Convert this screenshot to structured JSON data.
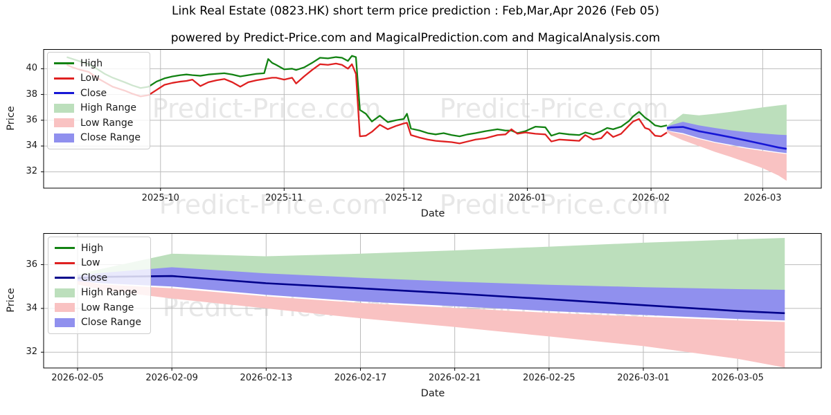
{
  "title": "Link Real Estate (0823.HK) short term price prediction : Feb,Mar,Apr 2026 (Feb 05)",
  "subtitle": "powered by Predict-Price.com and MagicalPrediction.com and MagicalAnalysis.com",
  "watermark": {
    "text": "Predict-Price.com"
  },
  "colors": {
    "high_line": "#128212",
    "low_line": "#df2020",
    "close_line_top": "#1616d6",
    "close_line_bottom": "#00008b",
    "high_band": "#bcdfbc",
    "low_band": "#f9c2c2",
    "close_band": "#9090ee",
    "grid": "#bbbbbb",
    "axis_border": "#000000",
    "watermark_color": "#e7e7e7"
  },
  "legend": {
    "items": [
      "High",
      "Low",
      "Close",
      "High Range",
      "Low Range",
      "Close Range"
    ]
  },
  "chart_data": {
    "type": "line",
    "title": "Link Real Estate (0823.HK) short term price prediction : Feb,Mar,Apr 2026 (Feb 05)",
    "subtitle": "powered by Predict-Price.com and MagicalPrediction.com and MagicalAnalysis.com",
    "time_base": "days since 2025-09-01",
    "history_series_note": "triplets [day, High, Low] for 2025-09-08 .. 2026-02-05",
    "history": [
      [
        6.5,
        40.9,
        40.3
      ],
      [
        8,
        40.75,
        40.1
      ],
      [
        10,
        40.55,
        39.9
      ],
      [
        12,
        40.35,
        39.75
      ],
      [
        14,
        40.0,
        39.3
      ],
      [
        16,
        39.6,
        38.95
      ],
      [
        18,
        39.3,
        38.6
      ],
      [
        21,
        38.95,
        38.3
      ],
      [
        23,
        38.7,
        38.05
      ],
      [
        25,
        38.5,
        37.85
      ],
      [
        27,
        38.6,
        37.95
      ],
      [
        29,
        39.0,
        38.35
      ],
      [
        31,
        39.25,
        38.75
      ],
      [
        33,
        39.4,
        38.9
      ],
      [
        35,
        39.5,
        39.0
      ],
      [
        36.5,
        39.55,
        39.05
      ],
      [
        38,
        39.5,
        39.15
      ],
      [
        40,
        39.45,
        38.65
      ],
      [
        42,
        39.55,
        38.95
      ],
      [
        44,
        39.6,
        39.1
      ],
      [
        46,
        39.65,
        39.2
      ],
      [
        48,
        39.55,
        38.95
      ],
      [
        50,
        39.4,
        38.6
      ],
      [
        52,
        39.5,
        38.95
      ],
      [
        54,
        39.6,
        39.1
      ],
      [
        56,
        39.65,
        39.2
      ],
      [
        57,
        40.75,
        39.25
      ],
      [
        58,
        40.45,
        39.3
      ],
      [
        59,
        40.3,
        39.3
      ],
      [
        61,
        39.95,
        39.15
      ],
      [
        63,
        40.0,
        39.3
      ],
      [
        64,
        39.9,
        38.85
      ],
      [
        66,
        40.1,
        39.4
      ],
      [
        68,
        40.45,
        39.9
      ],
      [
        70,
        40.85,
        40.35
      ],
      [
        72,
        40.8,
        40.3
      ],
      [
        74,
        40.9,
        40.4
      ],
      [
        75.5,
        40.85,
        40.3
      ],
      [
        77,
        40.6,
        40.0
      ],
      [
        78,
        41.0,
        40.35
      ],
      [
        79,
        40.9,
        39.6
      ],
      [
        80,
        36.8,
        34.75
      ],
      [
        81.5,
        36.5,
        34.8
      ],
      [
        83,
        35.9,
        35.1
      ],
      [
        85,
        36.35,
        35.65
      ],
      [
        87,
        35.85,
        35.3
      ],
      [
        89,
        36.0,
        35.55
      ],
      [
        91,
        36.1,
        35.75
      ],
      [
        91.8,
        36.5,
        35.8
      ],
      [
        92.8,
        35.35,
        34.85
      ],
      [
        95,
        35.2,
        34.65
      ],
      [
        97,
        35.0,
        34.5
      ],
      [
        99,
        34.9,
        34.4
      ],
      [
        101,
        35.0,
        34.35
      ],
      [
        103,
        34.85,
        34.3
      ],
      [
        105,
        34.75,
        34.2
      ],
      [
        107,
        34.9,
        34.35
      ],
      [
        109,
        35.0,
        34.5
      ],
      [
        111.5,
        35.15,
        34.6
      ],
      [
        114.5,
        35.3,
        34.85
      ],
      [
        116.5,
        35.2,
        34.9
      ],
      [
        118,
        35.2,
        35.3
      ],
      [
        119.5,
        35.0,
        34.95
      ],
      [
        121.5,
        35.15,
        35.05
      ],
      [
        124,
        35.5,
        34.95
      ],
      [
        126.5,
        35.45,
        34.9
      ],
      [
        128,
        34.8,
        34.35
      ],
      [
        130,
        35.0,
        34.5
      ],
      [
        132.5,
        34.9,
        34.45
      ],
      [
        135,
        34.85,
        34.4
      ],
      [
        136.5,
        35.05,
        34.85
      ],
      [
        138.5,
        34.9,
        34.5
      ],
      [
        140.5,
        35.15,
        34.6
      ],
      [
        142,
        35.4,
        35.1
      ],
      [
        143.5,
        35.3,
        34.7
      ],
      [
        145.5,
        35.5,
        34.95
      ],
      [
        147.5,
        35.95,
        35.6
      ],
      [
        148.5,
        36.3,
        35.9
      ],
      [
        150,
        36.65,
        36.1
      ],
      [
        151.5,
        36.2,
        35.4
      ],
      [
        152.5,
        36.0,
        35.3
      ],
      [
        154,
        35.6,
        34.8
      ],
      [
        155.5,
        35.5,
        34.75
      ],
      [
        157,
        35.6,
        35.05
      ]
    ],
    "prediction_note": "forecast 2026-02-05 .. 2026-03-07",
    "prediction": {
      "t": [
        157,
        158,
        161,
        165,
        169,
        173,
        177,
        181,
        185,
        187
      ],
      "close": [
        35.38,
        35.44,
        35.48,
        35.15,
        34.92,
        34.68,
        34.42,
        34.15,
        33.88,
        33.78
      ],
      "close_upper": [
        35.5,
        35.62,
        35.88,
        35.6,
        35.4,
        35.22,
        35.08,
        34.97,
        34.88,
        34.85
      ],
      "close_lower": [
        35.25,
        35.15,
        35.0,
        34.62,
        34.32,
        34.1,
        33.88,
        33.7,
        33.52,
        33.45
      ],
      "high_upper": [
        35.55,
        35.8,
        36.5,
        36.38,
        36.5,
        36.65,
        36.82,
        37.0,
        37.15,
        37.22
      ],
      "high_lower": [
        35.3,
        35.35,
        35.5,
        35.28,
        35.1,
        34.98,
        34.9,
        34.82,
        34.76,
        34.72
      ],
      "low_upper": [
        35.28,
        35.1,
        34.92,
        34.55,
        34.25,
        34.02,
        33.8,
        33.62,
        33.45,
        33.38
      ],
      "low_lower": [
        35.1,
        34.85,
        34.45,
        34.0,
        33.55,
        33.15,
        32.72,
        32.28,
        31.7,
        31.3
      ]
    },
    "charts": [
      {
        "name": "history-with-forecast",
        "show_history": true,
        "close_color_key": "close_line_top",
        "xlabel": "Date",
        "ylabel": "Price",
        "xlim": [
          0.69,
          195.7
        ],
        "ylim": [
          30.73,
          41.52
        ],
        "grid": true,
        "legend_position": "upper-left",
        "xticks": [
          {
            "v": 30,
            "label": "2025-10"
          },
          {
            "v": 61,
            "label": "2025-11"
          },
          {
            "v": 91,
            "label": "2025-12"
          },
          {
            "v": 122,
            "label": "2026-01"
          },
          {
            "v": 153,
            "label": "2026-02"
          },
          {
            "v": 181,
            "label": "2026-03"
          }
        ],
        "yticks": [
          {
            "v": 40,
            "label": "40"
          },
          {
            "v": 38,
            "label": "38"
          },
          {
            "v": 36,
            "label": "36"
          },
          {
            "v": 34,
            "label": "34"
          },
          {
            "v": 32,
            "label": "32"
          }
        ]
      },
      {
        "name": "forecast-zoom",
        "show_history": false,
        "close_color_key": "close_line_bottom",
        "xlabel": "Date",
        "ylabel": "Price",
        "xlim": [
          155.56,
          188.55
        ],
        "ylim": [
          31.28,
          37.44
        ],
        "grid": true,
        "legend_position": "upper-left",
        "xticks": [
          {
            "v": 157,
            "label": "2026-02-05"
          },
          {
            "v": 161,
            "label": "2026-02-09"
          },
          {
            "v": 165,
            "label": "2026-02-13"
          },
          {
            "v": 169,
            "label": "2026-02-17"
          },
          {
            "v": 173,
            "label": "2026-02-21"
          },
          {
            "v": 177,
            "label": "2026-02-25"
          },
          {
            "v": 181,
            "label": "2026-03-01"
          },
          {
            "v": 185,
            "label": "2026-03-05"
          }
        ],
        "yticks": [
          {
            "v": 36,
            "label": "36"
          },
          {
            "v": 34,
            "label": "34"
          },
          {
            "v": 32,
            "label": "32"
          }
        ]
      }
    ]
  }
}
